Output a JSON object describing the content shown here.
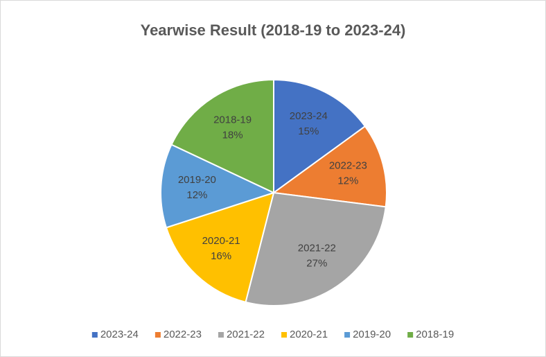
{
  "chart_data": {
    "type": "pie",
    "title": "Yearwise Result (2018-19 to 2023-24)",
    "categories": [
      "2023-24",
      "2022-23",
      "2021-22",
      "2020-21",
      "2019-20",
      "2018-19"
    ],
    "values": [
      15,
      12,
      27,
      16,
      12,
      18
    ],
    "value_labels": [
      "15%",
      "12%",
      "27%",
      "16%",
      "12%",
      "18%"
    ],
    "colors": [
      "#4472c4",
      "#ed7d31",
      "#a5a5a5",
      "#ffc000",
      "#5b9bd5",
      "#70ad47"
    ],
    "legend": "bottom"
  }
}
